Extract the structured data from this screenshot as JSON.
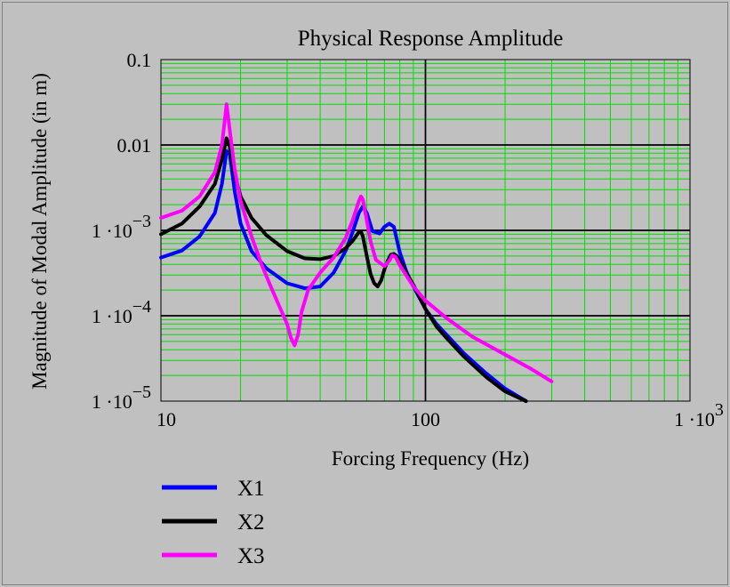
{
  "chart_data": {
    "type": "line",
    "title": "Physical Response Amplitude",
    "xlabel": "Forcing Frequency (Hz)",
    "ylabel": "Magnitude of Modal Amplitude (in m)",
    "xscale": "log",
    "yscale": "log",
    "xlim": [
      10,
      1000
    ],
    "ylim": [
      1e-05,
      0.1
    ],
    "grid": true,
    "legend_position": "bottom-left",
    "colors": {
      "background": "#c0c0c0",
      "major_grid": "#000000",
      "minor_grid": "#00e000"
    },
    "xticks": [
      {
        "value": 10,
        "base": "10",
        "exp": ""
      },
      {
        "value": 100,
        "base": "100",
        "exp": ""
      },
      {
        "value": 1000,
        "base": "1 ·10",
        "exp": "3"
      }
    ],
    "yticks": [
      {
        "value": 0.1,
        "base": "0.1",
        "exp": ""
      },
      {
        "value": 0.01,
        "base": "0.01",
        "exp": ""
      },
      {
        "value": 0.001,
        "base": "1 ·10",
        "exp": "−3"
      },
      {
        "value": 0.0001,
        "base": "1 ·10",
        "exp": "−4"
      },
      {
        "value": 1e-05,
        "base": "1 ·10",
        "exp": "−5"
      }
    ],
    "series": [
      {
        "name": "X1",
        "color": "#0000ff",
        "x": [
          10,
          12,
          14,
          16,
          17,
          17.7,
          18.2,
          19,
          20,
          22,
          25,
          30,
          35,
          40,
          45,
          50,
          53,
          56,
          58,
          60,
          63,
          67,
          70,
          73,
          76,
          78,
          80,
          85,
          90,
          100,
          110,
          120,
          140,
          170,
          200,
          240
        ],
        "y": [
          0.00048,
          0.00058,
          0.00085,
          0.0016,
          0.0035,
          0.0085,
          0.0078,
          0.0029,
          0.0012,
          0.00057,
          0.00036,
          0.00024,
          0.00021,
          0.00022,
          0.00032,
          0.00058,
          0.00095,
          0.0016,
          0.0019,
          0.0016,
          0.00098,
          0.00092,
          0.0011,
          0.0012,
          0.0011,
          0.00077,
          0.00055,
          0.00032,
          0.00022,
          0.00012,
          8e-05,
          6e-05,
          3.6e-05,
          2.1e-05,
          1.4e-05,
          9e-06
        ]
      },
      {
        "name": "X2",
        "color": "#000000",
        "x": [
          10,
          12,
          14,
          16,
          17,
          17.7,
          18.2,
          19,
          20,
          22,
          25,
          30,
          35,
          40,
          45,
          50,
          53,
          56,
          57,
          58,
          60,
          62,
          64,
          66,
          68,
          70,
          72,
          74,
          76,
          78,
          80,
          85,
          90,
          100,
          110,
          120,
          140,
          170,
          200,
          240
        ],
        "y": [
          0.0009,
          0.0012,
          0.0019,
          0.0035,
          0.0068,
          0.012,
          0.0095,
          0.0045,
          0.0025,
          0.0014,
          0.00088,
          0.00057,
          0.00047,
          0.00046,
          0.0005,
          0.00062,
          0.00075,
          0.00095,
          0.00097,
          0.00085,
          0.0005,
          0.00031,
          0.00024,
          0.00022,
          0.00026,
          0.00035,
          0.00044,
          0.00052,
          0.00053,
          0.0005,
          0.00044,
          0.00031,
          0.00023,
          0.00012,
          7.5e-05,
          5.5e-05,
          3.3e-05,
          1.9e-05,
          1.3e-05,
          8.5e-06
        ]
      },
      {
        "name": "X3",
        "color": "#ff00ff",
        "x": [
          10,
          12,
          14,
          16,
          17,
          17.7,
          18.2,
          19,
          20,
          22,
          24,
          26,
          28,
          30,
          31,
          32,
          33,
          34,
          36,
          40,
          45,
          50,
          53,
          56,
          57,
          58,
          60,
          62,
          65,
          70,
          73,
          75,
          77,
          80,
          85,
          90,
          100,
          120,
          150,
          200,
          250,
          300
        ],
        "y": [
          0.0014,
          0.0017,
          0.0025,
          0.0048,
          0.01,
          0.03,
          0.015,
          0.0052,
          0.0022,
          0.00085,
          0.0004,
          0.00022,
          0.00013,
          8e-05,
          5.5e-05,
          4.5e-05,
          6e-05,
          0.00011,
          0.0002,
          0.00032,
          0.00048,
          0.00082,
          0.0013,
          0.0022,
          0.0025,
          0.0023,
          0.0013,
          0.00075,
          0.00045,
          0.00038,
          0.00044,
          0.00051,
          0.00049,
          0.00039,
          0.00029,
          0.00022,
          0.00015,
          9.4e-05,
          5.7e-05,
          3.5e-05,
          2.4e-05,
          1.7e-05
        ]
      }
    ]
  }
}
